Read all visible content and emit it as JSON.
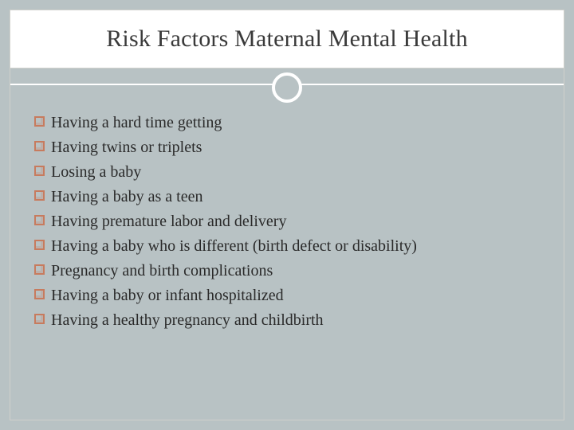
{
  "slide": {
    "title": "Risk Factors Maternal Mental Health",
    "title_fontsize": 30,
    "title_color": "#3a3a3a",
    "title_bg": "#ffffff",
    "background_color": "#b8c2c4",
    "frame_border_color": "#d0d0cc",
    "divider_color": "#ffffff",
    "ring_border_color": "#ffffff",
    "bullet_border_color": "#c77b5e",
    "body_text_color": "#2a2a2a",
    "body_fontsize": 20,
    "items": [
      "Having a hard time getting",
      "Having twins or triplets",
      "Losing a baby",
      "Having a baby as a teen",
      "Having premature labor and delivery",
      "Having a baby who is different (birth defect or disability)",
      "Pregnancy and birth complications",
      "Having a baby or infant hospitalized",
      "Having a healthy pregnancy and childbirth"
    ]
  }
}
